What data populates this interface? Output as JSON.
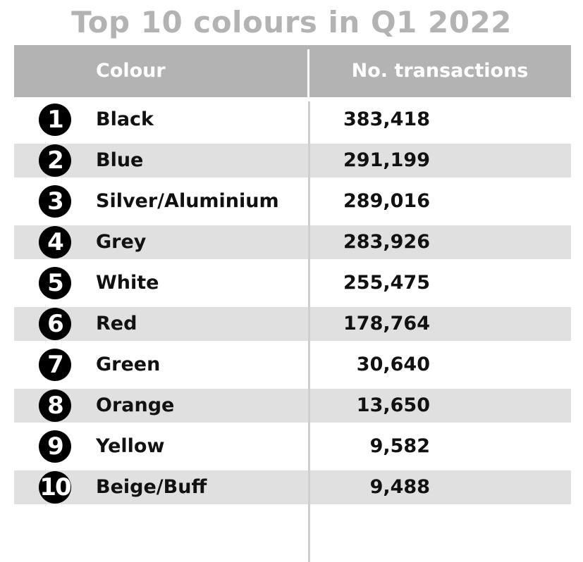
{
  "title": "Top 10 colours in Q1 2022",
  "chart_data": {
    "type": "table",
    "title": "Top 10 colours in Q1 2022",
    "columns": [
      "Colour",
      "No. transactions"
    ],
    "rows": [
      {
        "rank": "1",
        "colour": "Black",
        "transactions": "383,418"
      },
      {
        "rank": "2",
        "colour": "Blue",
        "transactions": "291,199"
      },
      {
        "rank": "3",
        "colour": "Silver/Aluminium",
        "transactions": "289,016"
      },
      {
        "rank": "4",
        "colour": "Grey",
        "transactions": "283,926"
      },
      {
        "rank": "5",
        "colour": "White",
        "transactions": "255,475"
      },
      {
        "rank": "6",
        "colour": "Red",
        "transactions": "178,764"
      },
      {
        "rank": "7",
        "colour": "Green",
        "transactions": "30,640"
      },
      {
        "rank": "8",
        "colour": "Orange",
        "transactions": "13,650"
      },
      {
        "rank": "9",
        "colour": "Yellow",
        "transactions": "9,582"
      },
      {
        "rank": "10",
        "colour": "Beige/Buff",
        "transactions": "9,488"
      }
    ]
  },
  "colors": {
    "header_bg": "#b3b3b3",
    "title_text": "#b3b3b3",
    "row_shade": "#e0e0e0",
    "rank_badge": "#000000"
  },
  "icons": {
    "rank_badge": "black-circle-number-icon"
  }
}
